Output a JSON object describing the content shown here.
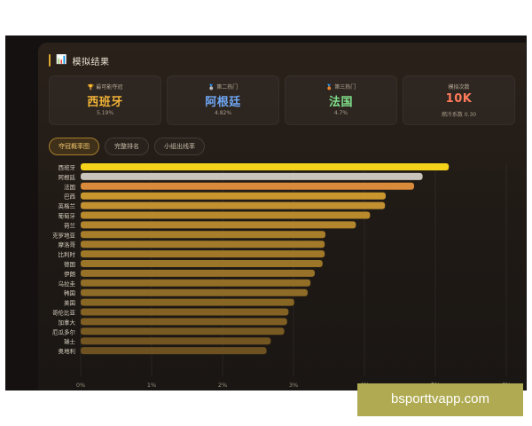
{
  "header": {
    "title": "模拟结果",
    "icon": "chart-icon"
  },
  "cards": [
    {
      "label": "最可能夺冠",
      "name": "西班牙",
      "prob": "5.19%",
      "color": "#f2b437",
      "icon": "trophy-icon"
    },
    {
      "label": "第二热门",
      "name": "阿根廷",
      "prob": "4.82%",
      "color": "#6fa8f5",
      "icon": "silver-medal-icon"
    },
    {
      "label": "第三热门",
      "name": "法国",
      "prob": "4.7%",
      "color": "#7fe08a",
      "icon": "bronze-medal-icon"
    },
    {
      "label": "模拟次数",
      "name": "10K",
      "prob": "熵冷系数 0.30",
      "color": "#ff7a5a",
      "icon": ""
    }
  ],
  "tabs": [
    {
      "label": "夺冠概率图",
      "active": true
    },
    {
      "label": "完整排名",
      "active": false
    },
    {
      "label": "小组出线率",
      "active": false
    }
  ],
  "chart_data": {
    "type": "bar",
    "orientation": "horizontal",
    "categories": [
      "西班牙",
      "阿根廷",
      "法国",
      "巴西",
      "英格兰",
      "葡萄牙",
      "荷兰",
      "克罗地亚",
      "摩洛哥",
      "比利时",
      "德国",
      "伊朗",
      "乌拉圭",
      "韩国",
      "美国",
      "哥伦比亚",
      "加拿大",
      "厄瓜多尔",
      "瑞士",
      "奥地利"
    ],
    "values": [
      5.19,
      4.82,
      4.7,
      4.3,
      4.29,
      4.08,
      3.88,
      3.45,
      3.44,
      3.44,
      3.41,
      3.3,
      3.24,
      3.2,
      3.01,
      2.93,
      2.91,
      2.87,
      2.68,
      2.62
    ],
    "bar_colors": [
      "#f5d21a",
      "#c9c5bd",
      "#d98a3a",
      "#c9962e",
      "#c29030",
      "#b98a2c",
      "#b3852c",
      "#a87e2a",
      "#a37a2a",
      "#a07828",
      "#9c7628",
      "#977228",
      "#926e26",
      "#8e6b26",
      "#886624",
      "#836224",
      "#7e5e22",
      "#795a22",
      "#725520",
      "#6d5120"
    ],
    "xlim": [
      0,
      6
    ],
    "xticks": [
      "0%",
      "1%",
      "2%",
      "3%",
      "4%",
      "5%",
      "6%"
    ],
    "grid": true
  },
  "watermark": {
    "text": "bsporttvapp.com"
  }
}
